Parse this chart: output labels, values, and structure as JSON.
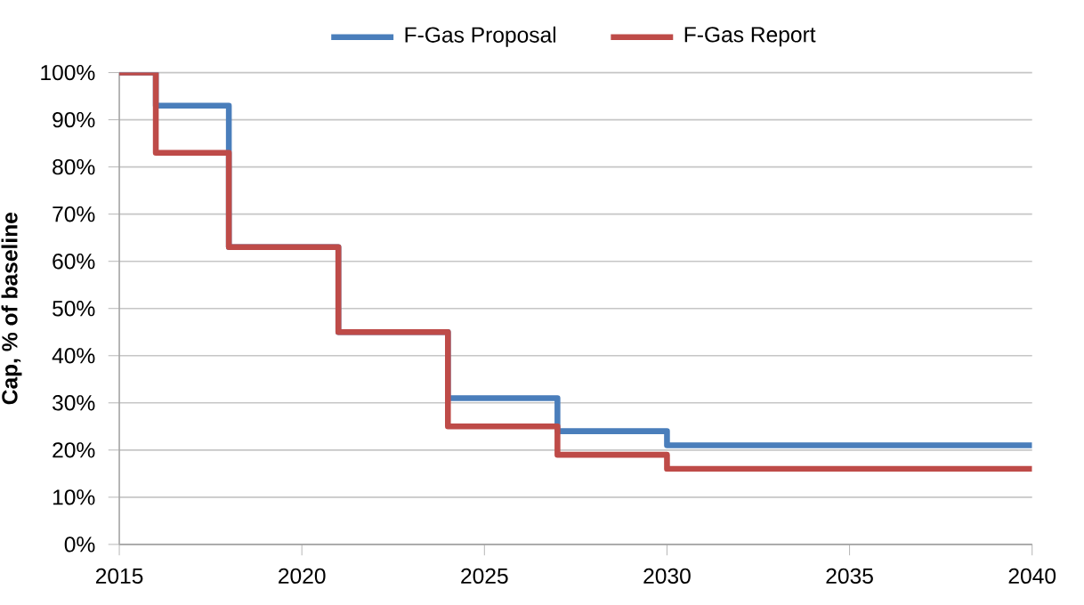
{
  "chart_data": {
    "type": "step",
    "ylabel": "Cap, % of baseline",
    "x": [
      2015,
      2016,
      2018,
      2021,
      2024,
      2027,
      2030,
      2040
    ],
    "series": [
      {
        "name": "F-Gas Proposal",
        "color": "#4a7ebb",
        "values": [
          100,
          93,
          63,
          45,
          31,
          24,
          21,
          21
        ]
      },
      {
        "name": "F-Gas Report",
        "color": "#be4b48",
        "values": [
          100,
          83,
          63,
          45,
          25,
          19,
          16,
          16
        ]
      }
    ],
    "xlim": [
      2015,
      2040
    ],
    "xticks": [
      2015,
      2020,
      2025,
      2030,
      2035,
      2040
    ],
    "ylim": [
      0,
      100
    ],
    "yticks": [
      {
        "value": 0,
        "label": "0%"
      },
      {
        "value": 10,
        "label": "10%"
      },
      {
        "value": 20,
        "label": "20%"
      },
      {
        "value": 30,
        "label": "30%"
      },
      {
        "value": 40,
        "label": "40%"
      },
      {
        "value": 50,
        "label": "50%"
      },
      {
        "value": 60,
        "label": "60%"
      },
      {
        "value": 70,
        "label": "70%"
      },
      {
        "value": 80,
        "label": "80%"
      },
      {
        "value": 90,
        "label": "90%"
      },
      {
        "value": 100,
        "label": "100%"
      }
    ],
    "grid": "y",
    "legend": "top",
    "marker": "none",
    "line_style": "solid"
  }
}
